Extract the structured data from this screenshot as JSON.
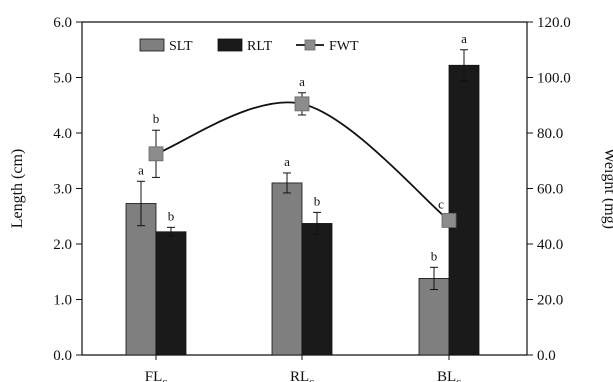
{
  "chart_data": {
    "type": "bar",
    "categories": [
      "FL",
      "RL",
      "BL"
    ],
    "category_subscript": "c",
    "ylabel": "Length (cm)",
    "y2label": "Weight (mg)",
    "ylim": [
      0,
      6
    ],
    "y2lim": [
      0,
      120
    ],
    "yticks": [
      "0.0",
      "1.0",
      "2.0",
      "3.0",
      "4.0",
      "5.0",
      "6.0"
    ],
    "y2ticks": [
      "0.0",
      "20.0",
      "40.0",
      "60.0",
      "80.0",
      "100.0",
      "120.0"
    ],
    "legend_position": "top-left",
    "grid": false,
    "series": [
      {
        "name": "SLT",
        "kind": "bar",
        "axis": "left",
        "color": "#7f7f7f",
        "values": [
          2.73,
          3.1,
          1.38
        ],
        "errors": [
          0.4,
          0.18,
          0.2
        ],
        "significance": [
          "a",
          "a",
          "b"
        ]
      },
      {
        "name": "RLT",
        "kind": "bar",
        "axis": "left",
        "color": "#1a1a1a",
        "values": [
          2.22,
          2.37,
          5.22
        ],
        "errors": [
          0.08,
          0.2,
          0.28
        ],
        "significance": [
          "b",
          "b",
          "a"
        ]
      },
      {
        "name": "FWT",
        "kind": "line",
        "axis": "right",
        "color": "#8c8c8c",
        "line_color": "#111111",
        "values": [
          72.5,
          90.5,
          48.5
        ],
        "errors": [
          8.5,
          4.0,
          0
        ],
        "significance": [
          "b",
          "a",
          "c"
        ]
      }
    ]
  }
}
